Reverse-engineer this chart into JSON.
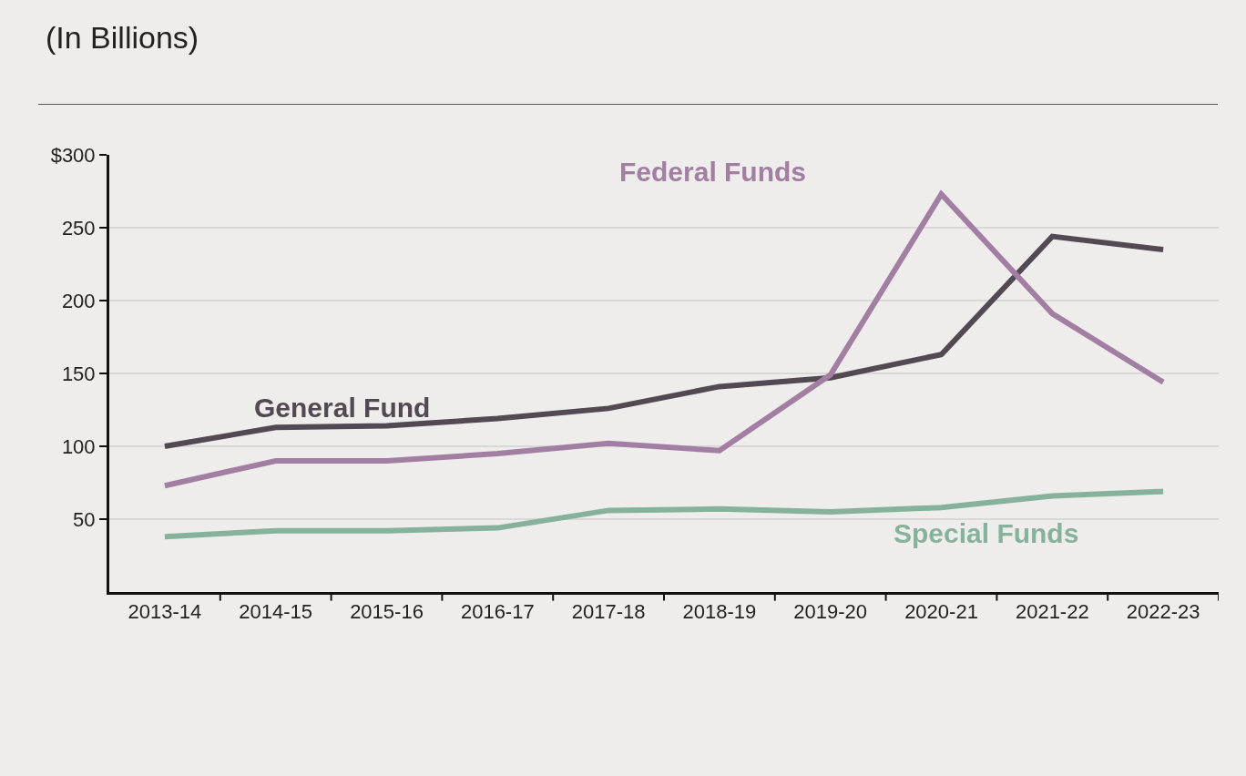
{
  "chart_data": {
    "type": "line",
    "title": "(In Billions)",
    "categories": [
      "2013-14",
      "2014-15",
      "2015-16",
      "2016-17",
      "2017-18",
      "2018-19",
      "2019-20",
      "2020-21",
      "2021-22",
      "2022-23"
    ],
    "series": [
      {
        "name": "General Fund",
        "color": "#524953",
        "values": [
          100,
          113,
          114,
          119,
          126,
          141,
          147,
          163,
          244,
          235
        ]
      },
      {
        "name": "Federal Funds",
        "color": "#a27fa2",
        "values": [
          73,
          90,
          90,
          95,
          102,
          97,
          149,
          273,
          191,
          144
        ]
      },
      {
        "name": "Special Funds",
        "color": "#86b29c",
        "values": [
          38,
          42,
          42,
          44,
          56,
          57,
          55,
          58,
          66,
          69
        ]
      }
    ],
    "ylim": [
      0,
      300
    ],
    "yticks": [
      50,
      100,
      150,
      200,
      250,
      {
        "value": 300,
        "label": "$300"
      }
    ],
    "grid": "y",
    "legend": false,
    "marker": "none",
    "line_style": "solid"
  }
}
